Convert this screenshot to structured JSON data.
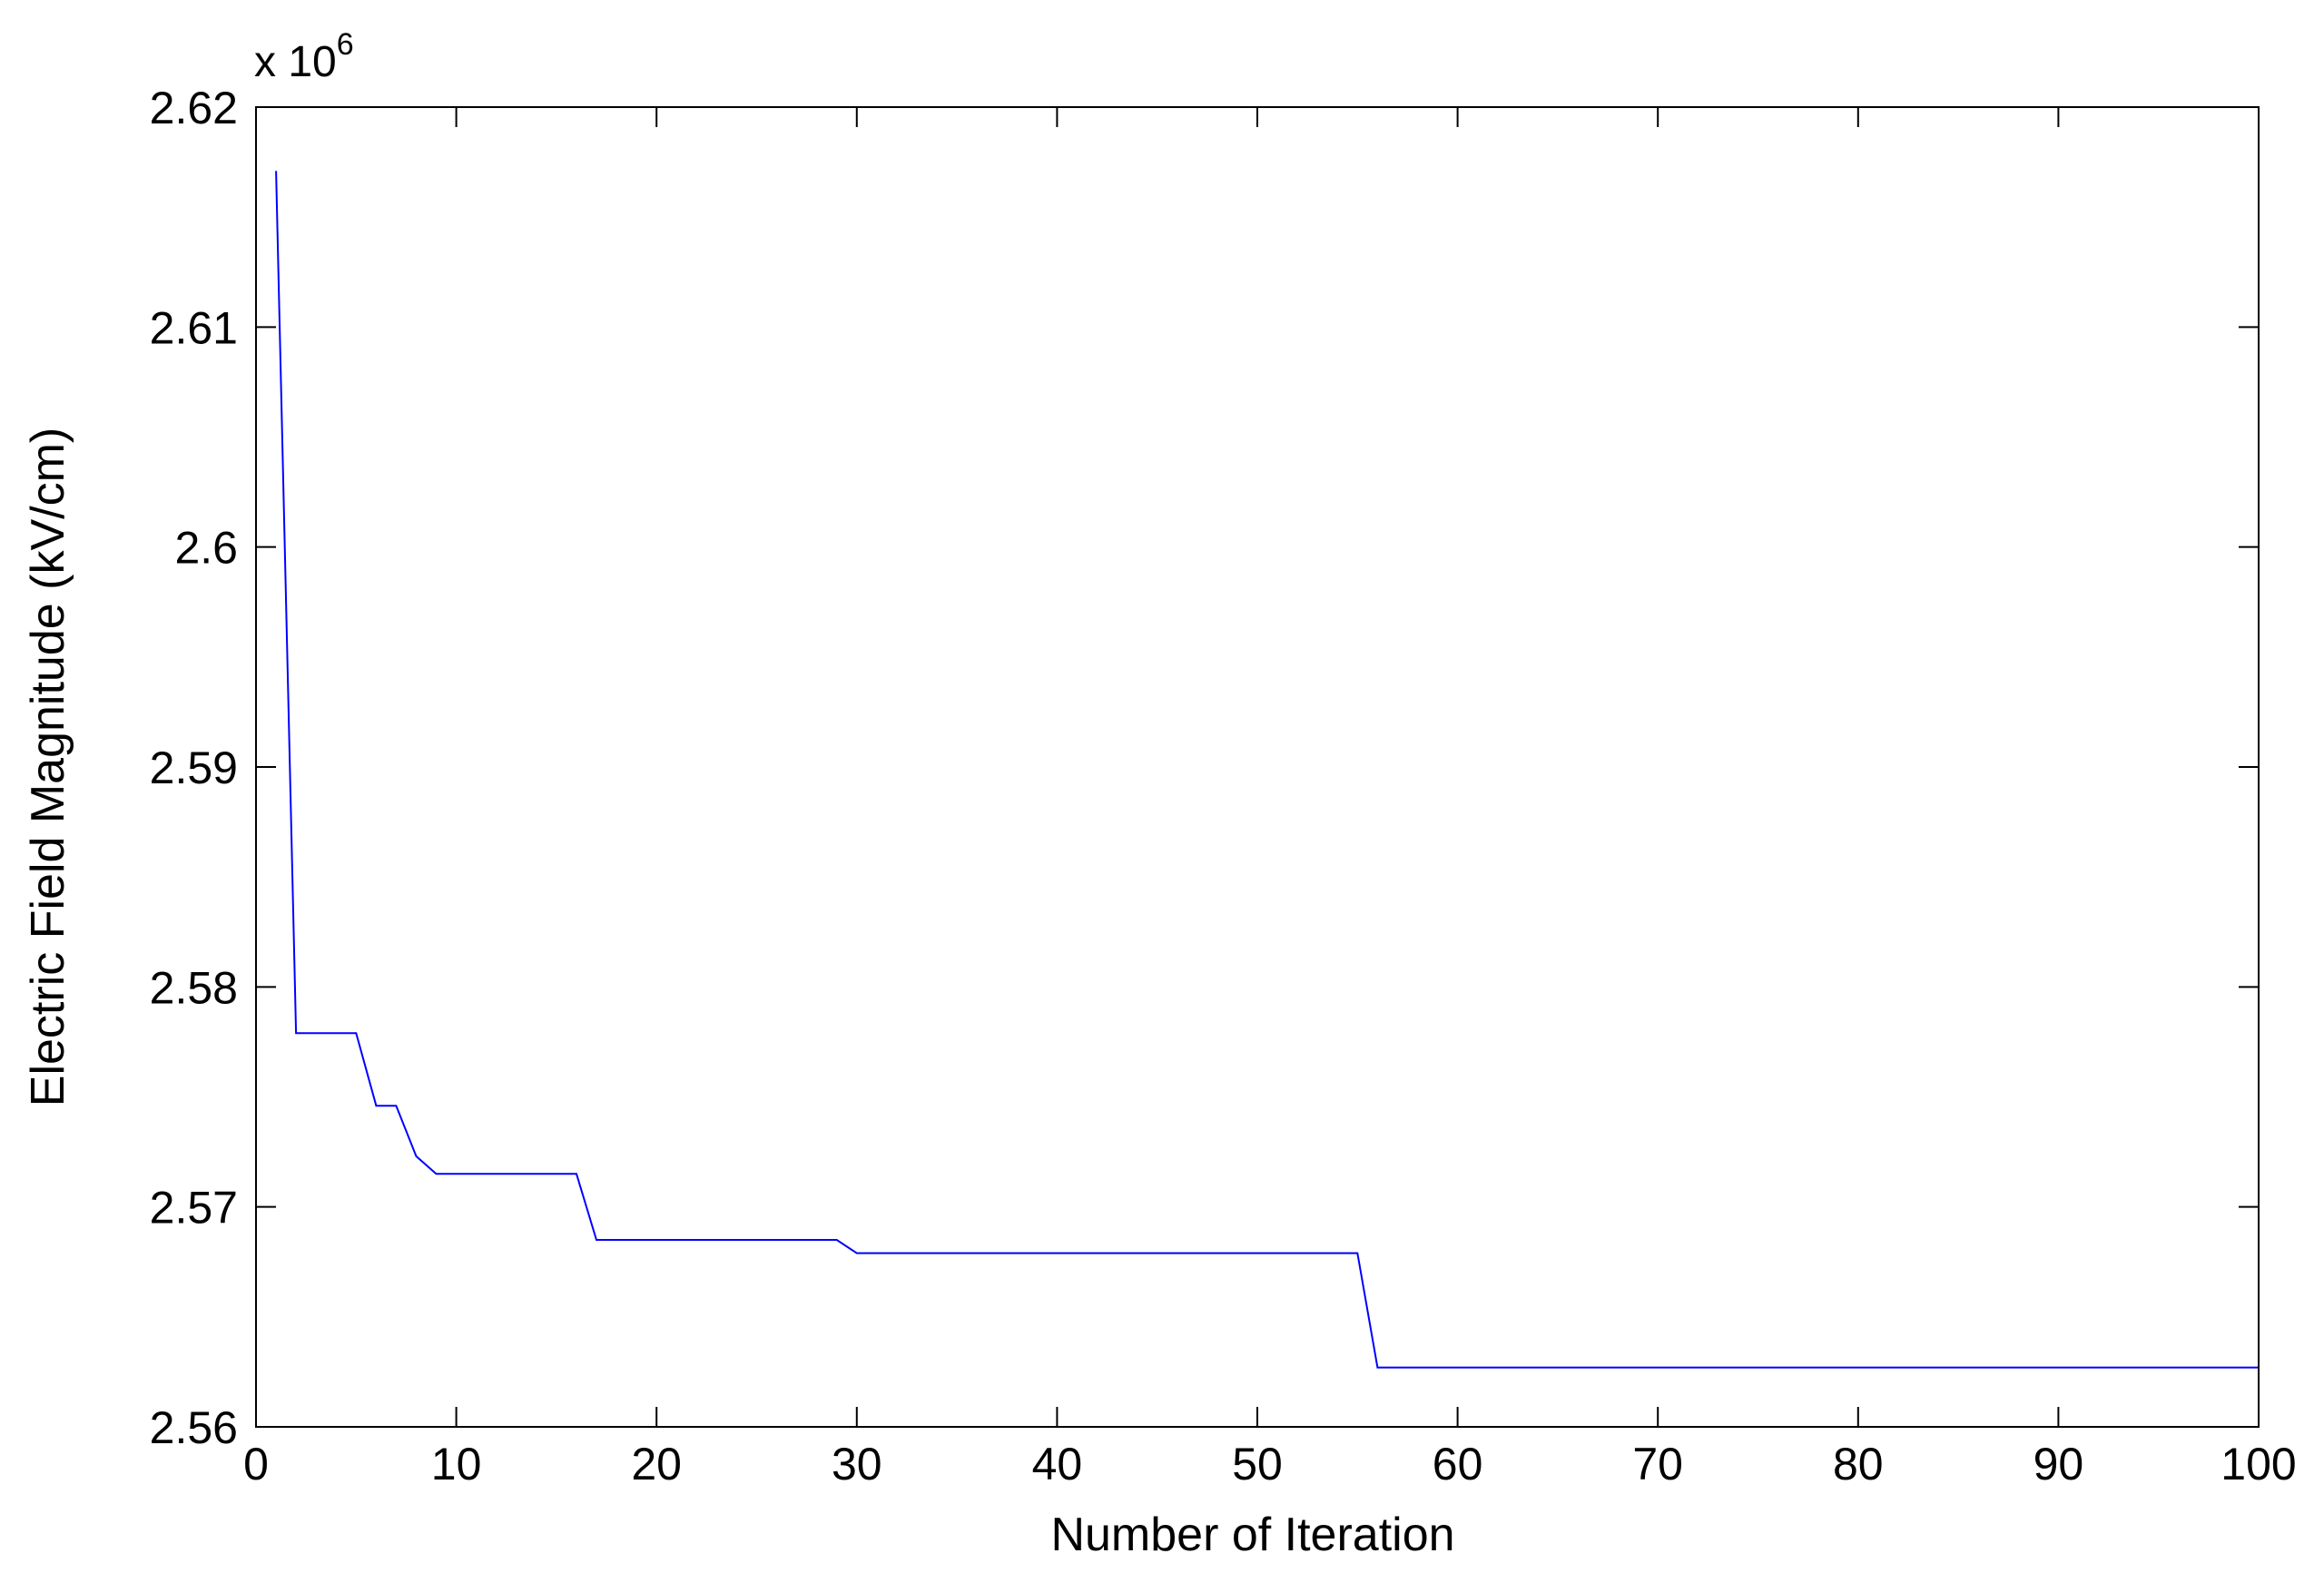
{
  "chart_data": {
    "type": "line",
    "xlabel": "Number of Iteration",
    "ylabel": "Electric Field Magnitude (kV/cm)",
    "y_exponent_base": "x 10",
    "y_exponent_power": "6",
    "xlim": [
      0,
      100
    ],
    "ylim": [
      2.56,
      2.62
    ],
    "x_ticks": [
      0,
      10,
      20,
      30,
      40,
      50,
      60,
      70,
      80,
      90,
      100
    ],
    "x_tick_labels": [
      "0",
      "10",
      "20",
      "30",
      "40",
      "50",
      "60",
      "70",
      "80",
      "90",
      "100"
    ],
    "y_ticks": [
      2.56,
      2.57,
      2.58,
      2.59,
      2.6,
      2.61,
      2.62
    ],
    "y_tick_labels": [
      "2.56",
      "2.57",
      "2.58",
      "2.59",
      "2.6",
      "2.61",
      "2.62"
    ],
    "grid": false,
    "line_color": "#0000ff",
    "series": [
      {
        "x": [
          1,
          2,
          3,
          4,
          5,
          6,
          7,
          8,
          9,
          10,
          16,
          17,
          29,
          30,
          55,
          56,
          100
        ],
        "y": [
          2.6171,
          2.5779,
          2.5779,
          2.5779,
          2.5779,
          2.5746,
          2.5746,
          2.5723,
          2.5715,
          2.5715,
          2.5715,
          2.5685,
          2.5685,
          2.5679,
          2.5679,
          2.5627,
          2.5627
        ]
      }
    ]
  }
}
